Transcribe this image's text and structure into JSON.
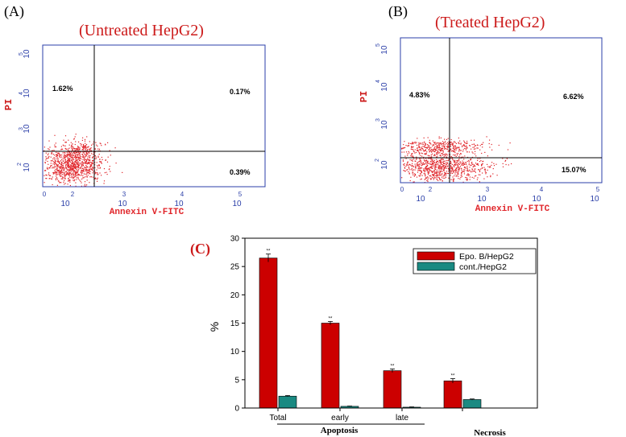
{
  "colors": {
    "title_red": "#cc1a1a",
    "axis_blue": "#2b3fa8",
    "dot_red": "#e0252a",
    "bar_red": "#cc0000",
    "bar_teal": "#1a8a82",
    "black": "#000000"
  },
  "panel_a": {
    "label": "(A)",
    "title": "(Untreated HepG2)",
    "y_axis_label": "PI",
    "x_axis_label": "Annexin V-FITC",
    "quadrants": {
      "ul": "1.62%",
      "ur": "0.17%",
      "lr": "0.39%"
    },
    "y_ticks": [
      {
        "base": "10",
        "exp": "5"
      },
      {
        "base": "10",
        "exp": "4"
      },
      {
        "base": "10",
        "exp": "3"
      },
      {
        "base": "10",
        "exp": "2"
      }
    ],
    "x_ticks": [
      {
        "base": "10",
        "exp": "0"
      },
      {
        "base": "10",
        "exp": "2"
      },
      {
        "base": "10",
        "exp": "3"
      },
      {
        "base": "10",
        "exp": "4"
      },
      {
        "base": "10",
        "exp": "5"
      }
    ]
  },
  "panel_b": {
    "label": "(B)",
    "title": "(Treated HepG2)",
    "y_axis_label": "PI",
    "x_axis_label": "Annexin V-FITC",
    "quadrants": {
      "ul": "4.83%",
      "ur": "6.62%",
      "lr": "15.07%"
    },
    "y_ticks": [
      {
        "base": "10",
        "exp": "5"
      },
      {
        "base": "10",
        "exp": "4"
      },
      {
        "base": "10",
        "exp": "3"
      },
      {
        "base": "10",
        "exp": "2"
      }
    ],
    "x_ticks": [
      {
        "base": "10",
        "exp": "0"
      },
      {
        "base": "10",
        "exp": "2"
      },
      {
        "base": "10",
        "exp": "3"
      },
      {
        "base": "10",
        "exp": "4"
      },
      {
        "base": "10",
        "exp": "5"
      }
    ]
  },
  "chart_data": {
    "type": "bar",
    "label": "(C)",
    "categories": [
      "Total",
      "early",
      "late",
      ""
    ],
    "group_labels": {
      "apoptosis": "Apoptosis",
      "necrosis": "Necrosis"
    },
    "ylabel": "%",
    "ylim": [
      0,
      30
    ],
    "yticks": [
      0,
      5,
      10,
      15,
      20,
      25,
      30
    ],
    "series": [
      {
        "name": "Epo. B/HepG2",
        "values": [
          26.5,
          15.0,
          6.6,
          4.8
        ],
        "errors": [
          0.7,
          0.3,
          0.3,
          0.4
        ],
        "sig": [
          "**",
          "**",
          "**",
          "**"
        ]
      },
      {
        "name": "cont./HepG2",
        "values": [
          2.1,
          0.3,
          0.15,
          1.5
        ],
        "errors": [
          0.1,
          0.05,
          0.05,
          0.1
        ]
      }
    ],
    "legend_position": "top-right"
  }
}
